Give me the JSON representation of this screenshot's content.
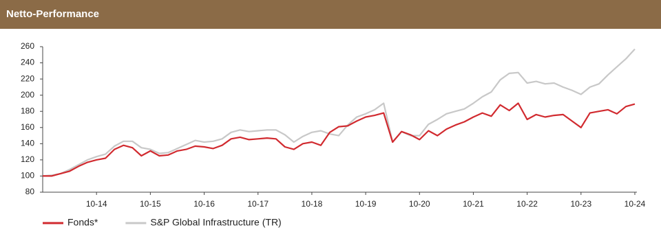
{
  "chart_data": {
    "type": "line",
    "title": "Netto-Performance",
    "categories": [
      null,
      null,
      null,
      null,
      null,
      null,
      "10-14",
      null,
      null,
      null,
      null,
      null,
      "10-15",
      null,
      null,
      null,
      null,
      null,
      "10-16",
      null,
      null,
      null,
      null,
      null,
      "10-17",
      null,
      null,
      null,
      null,
      null,
      "10-18",
      null,
      null,
      null,
      null,
      null,
      "10-19",
      null,
      null,
      null,
      null,
      null,
      "10-20",
      null,
      null,
      null,
      null,
      null,
      "10-21",
      null,
      null,
      null,
      null,
      null,
      "10-22",
      null,
      null,
      null,
      null,
      null,
      "10-23",
      null,
      null,
      null,
      null,
      null,
      "10-24"
    ],
    "series": [
      {
        "name": "Fonds*",
        "color": "#d12a2f",
        "values": [
          100,
          100,
          103,
          106,
          112,
          117,
          120,
          122,
          133,
          138,
          135,
          125,
          131,
          125,
          126,
          131,
          133,
          137,
          136,
          134,
          138,
          146,
          148,
          145,
          146,
          147,
          146,
          136,
          133,
          140,
          142,
          138,
          154,
          161,
          162,
          168,
          173,
          175,
          178,
          142,
          155,
          151,
          145,
          156,
          150,
          158,
          163,
          167,
          173,
          178,
          174,
          188,
          181,
          190,
          170,
          176,
          173,
          175,
          176,
          168,
          160,
          178,
          180,
          182,
          177,
          186,
          189
        ]
      },
      {
        "name": "S&P Global Infrastructure (TR)",
        "color": "#c8c8c8",
        "values": [
          100,
          101,
          103,
          108,
          114,
          120,
          124,
          127,
          137,
          143,
          143,
          135,
          133,
          128,
          129,
          134,
          139,
          144,
          142,
          143,
          146,
          154,
          157,
          155,
          156,
          157,
          157,
          151,
          142,
          149,
          154,
          156,
          152,
          150,
          163,
          173,
          177,
          182,
          190,
          142,
          155,
          150,
          150,
          164,
          170,
          177,
          180,
          183,
          190,
          198,
          204,
          219,
          227,
          228,
          215,
          217,
          214,
          215,
          210,
          206,
          201,
          210,
          214,
          225,
          235,
          245,
          257
        ]
      }
    ],
    "ylim": [
      80,
      260
    ],
    "yticks": [
      80,
      100,
      120,
      140,
      160,
      180,
      200,
      220,
      240,
      260
    ],
    "grid": false,
    "legend": "bottom"
  }
}
